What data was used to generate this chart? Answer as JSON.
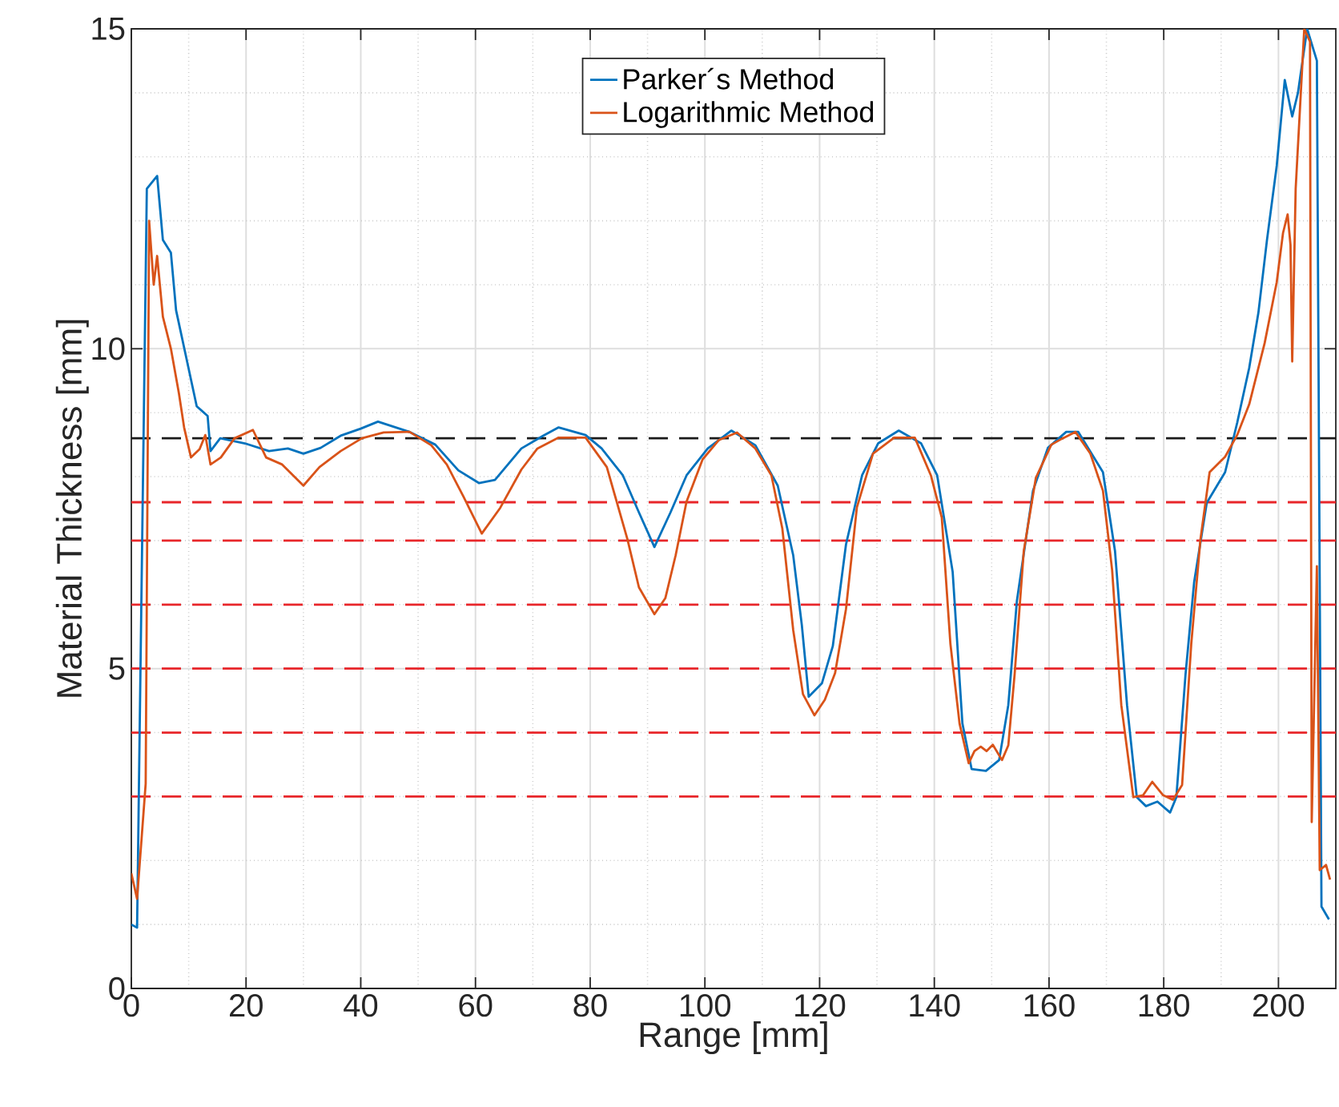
{
  "chart_data": {
    "type": "line",
    "xlabel": "Range [mm]",
    "ylabel": "Material Thickness [mm]",
    "xlim": [
      0,
      210
    ],
    "ylim": [
      0,
      15
    ],
    "xticks": [
      0,
      20,
      40,
      60,
      80,
      100,
      120,
      140,
      160,
      180,
      200
    ],
    "yticks": [
      0,
      5,
      10,
      15
    ],
    "grid": true,
    "legend": "top",
    "line_style": "solid",
    "series": [
      {
        "name": "Parker´s Method",
        "color": "#0072bd",
        "x": [
          0,
          1,
          2.7,
          4.5,
          5.5,
          6.9,
          7.8,
          9.6,
          11.4,
          13.3,
          13.8,
          15.5,
          19.8,
          24,
          27.3,
          30,
          33,
          36.5,
          40,
          43,
          48.5,
          53,
          57,
          60.6,
          63.4,
          68,
          71.8,
          74.5,
          79.2,
          82,
          85.7,
          88.5,
          91.2,
          94,
          96.8,
          100.5,
          104.6,
          108.8,
          112.7,
          115.4,
          116.9,
          118.1,
          120.4,
          122.3,
          124.6,
          127.4,
          130.2,
          133.8,
          137.7,
          140.5,
          143.2,
          144.9,
          146.5,
          149,
          151.3,
          152.9,
          154.4,
          157.2,
          159.8,
          163,
          165.1,
          169.4,
          171.5,
          173.6,
          175.3,
          176.9,
          178.9,
          181.1,
          182.2,
          183.8,
          185.3,
          187.5,
          190.7,
          192.8,
          194.9,
          196.5,
          198,
          199.7,
          201.1,
          202.4,
          203.4,
          205,
          206.7,
          207.5,
          208.8
        ],
        "values": [
          1.0,
          0.95,
          12.5,
          12.7,
          11.7,
          11.5,
          10.6,
          9.85,
          9.1,
          8.95,
          8.4,
          8.6,
          8.52,
          8.4,
          8.44,
          8.36,
          8.45,
          8.64,
          8.75,
          8.86,
          8.7,
          8.5,
          8.1,
          7.9,
          7.95,
          8.44,
          8.64,
          8.77,
          8.65,
          8.44,
          8.02,
          7.44,
          6.9,
          7.44,
          8.02,
          8.44,
          8.72,
          8.49,
          7.86,
          6.77,
          5.68,
          4.56,
          4.77,
          5.35,
          6.94,
          8.02,
          8.52,
          8.72,
          8.52,
          8.02,
          6.51,
          4.14,
          3.43,
          3.4,
          3.57,
          4.43,
          6.06,
          7.78,
          8.45,
          8.7,
          8.7,
          8.07,
          6.84,
          4.43,
          2.99,
          2.85,
          2.92,
          2.75,
          2.99,
          4.91,
          6.35,
          7.59,
          8.07,
          8.84,
          9.7,
          10.56,
          11.7,
          12.86,
          14.2,
          13.63,
          14.0,
          15.0,
          14.5,
          1.28,
          1.08
        ]
      },
      {
        "name": "Logarithmic Method",
        "color": "#d95319",
        "x": [
          0,
          1,
          2.5,
          3.1,
          3.9,
          4.5,
          5.5,
          6.9,
          8.3,
          9.2,
          10.4,
          11.9,
          12.9,
          13.8,
          15.6,
          18,
          21.2,
          23.5,
          26.3,
          30,
          32.8,
          36.5,
          40.2,
          44,
          48.5,
          52.3,
          55,
          57.9,
          61.1,
          64.3,
          68,
          70.8,
          74.5,
          79.2,
          82.9,
          86.5,
          88.5,
          91.2,
          93.1,
          94.9,
          96.8,
          99.6,
          102.4,
          105.6,
          108.8,
          111.6,
          113.5,
          115.4,
          117.1,
          119.1,
          120.9,
          122.7,
          124.6,
          126.5,
          129.3,
          133,
          136.6,
          139.4,
          141.3,
          142.8,
          144.4,
          146,
          147,
          148.1,
          149.1,
          150.2,
          151.8,
          152.9,
          154,
          155.6,
          157.7,
          160.4,
          162.4,
          164.6,
          167.2,
          169.4,
          171,
          172.6,
          174.7,
          176.4,
          178,
          179.9,
          181.6,
          183.2,
          184.8,
          186.4,
          188,
          190.7,
          192.8,
          194.9,
          197.6,
          199.7,
          200.8,
          201.6,
          202.1,
          202.4,
          203,
          204.5,
          205.5,
          205.8,
          206.7,
          207.2,
          208.3,
          209
        ],
        "values": [
          1.8,
          1.4,
          3.2,
          12.0,
          11.0,
          11.45,
          10.5,
          10.0,
          9.3,
          8.77,
          8.3,
          8.43,
          8.65,
          8.19,
          8.3,
          8.6,
          8.73,
          8.3,
          8.19,
          7.86,
          8.15,
          8.4,
          8.6,
          8.69,
          8.7,
          8.49,
          8.19,
          7.69,
          7.11,
          7.51,
          8.11,
          8.44,
          8.61,
          8.61,
          8.15,
          7.02,
          6.27,
          5.85,
          6.1,
          6.77,
          7.61,
          8.27,
          8.57,
          8.69,
          8.44,
          8.02,
          7.19,
          5.6,
          4.6,
          4.27,
          4.51,
          4.93,
          5.93,
          7.52,
          8.36,
          8.61,
          8.61,
          8.02,
          7.36,
          5.39,
          4.14,
          3.52,
          3.71,
          3.78,
          3.71,
          3.81,
          3.57,
          3.8,
          4.91,
          6.84,
          7.98,
          8.5,
          8.6,
          8.7,
          8.36,
          7.78,
          6.54,
          4.43,
          2.99,
          3.02,
          3.23,
          3.02,
          2.95,
          3.18,
          5.39,
          7.02,
          8.07,
          8.31,
          8.65,
          9.13,
          10.09,
          11.04,
          11.81,
          12.1,
          11.62,
          9.8,
          12.5,
          15.0,
          14.8,
          2.6,
          6.6,
          1.85,
          1.93,
          1.7
        ]
      }
    ],
    "ref_lines": [
      {
        "axis": "y",
        "value": 8.6,
        "color": "#1a1a1a",
        "line_style": "dashed"
      },
      {
        "axis": "y",
        "value": 7.6,
        "color": "#e8262a",
        "line_style": "dashed"
      },
      {
        "axis": "y",
        "value": 7,
        "color": "#e8262a",
        "line_style": "dashed"
      },
      {
        "axis": "y",
        "value": 6,
        "color": "#e8262a",
        "line_style": "dashed"
      },
      {
        "axis": "y",
        "value": 5,
        "color": "#e8262a",
        "line_style": "dashed"
      },
      {
        "axis": "y",
        "value": 4,
        "color": "#e8262a",
        "line_style": "dashed"
      },
      {
        "axis": "y",
        "value": 3,
        "color": "#e8262a",
        "line_style": "dashed"
      }
    ]
  }
}
